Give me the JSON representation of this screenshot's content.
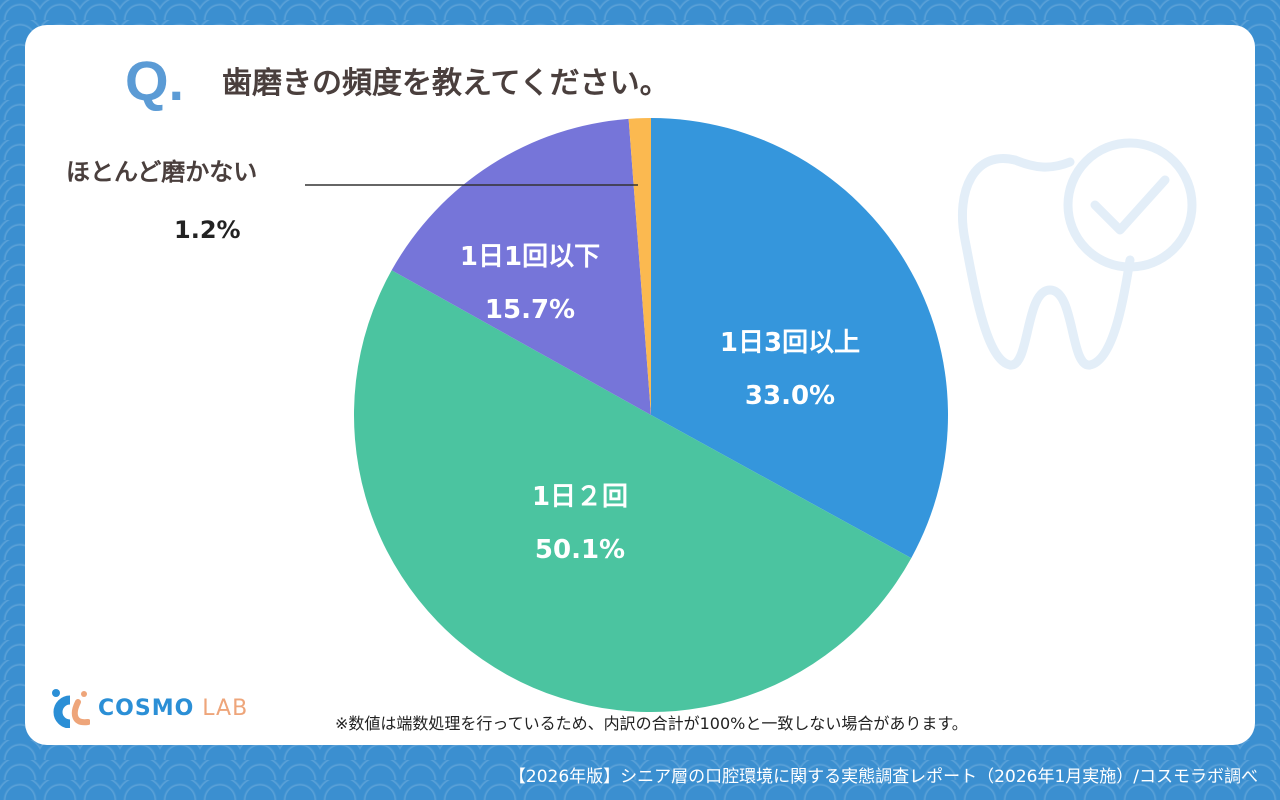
{
  "header": {
    "q_mark": "Q.",
    "question": "歯磨きの頻度を教えてください。"
  },
  "chart_data": {
    "type": "pie",
    "title": "歯磨きの頻度を教えてください。",
    "start": "top",
    "direction": "clockwise",
    "slices": [
      {
        "label": "1日3回以上",
        "value": 33.0,
        "display": "33.0%",
        "color": "#3596dc"
      },
      {
        "label": "1日２回",
        "value": 50.1,
        "display": "50.1%",
        "color": "#4bc4a0"
      },
      {
        "label": "1日1回以下",
        "value": 15.7,
        "display": "15.7%",
        "color": "#7675d9"
      },
      {
        "label": "ほとんど磨かない",
        "value": 1.2,
        "display": "1.2%",
        "color": "#fbb950"
      }
    ]
  },
  "note": "※数値は端数処理を行っているため、内訳の合計が100%と一致しない場合があります。",
  "logo": {
    "main": "COSMO",
    "sub": "LAB"
  },
  "footer": "【2026年版】シニア層の口腔環境に関する実態調査レポート（2026年1月実施）/コスモラボ調べ"
}
